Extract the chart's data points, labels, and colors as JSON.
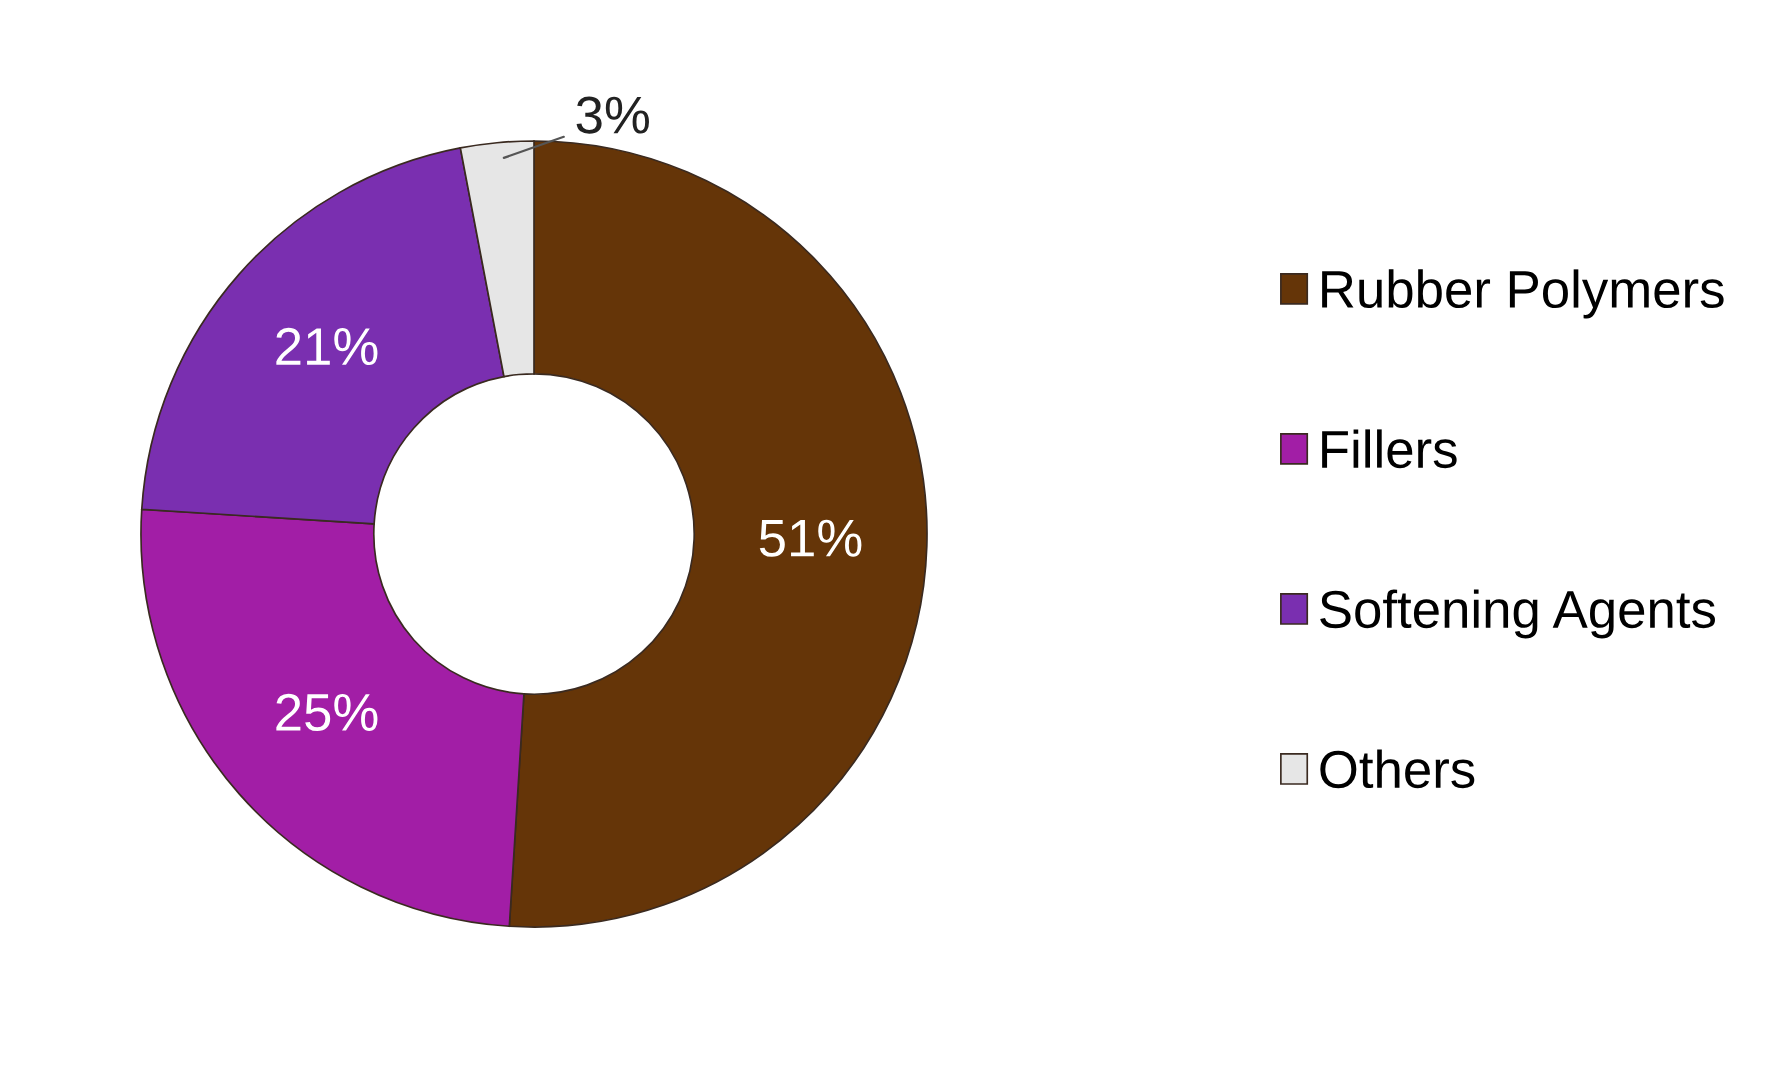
{
  "chart_data": {
    "type": "donut",
    "categories": [
      "Rubber Polymers",
      "Fillers",
      "Softening Agents",
      "Others"
    ],
    "values": [
      51,
      25,
      21,
      3
    ],
    "colors": [
      "#653508",
      "#a21ea6",
      "#7a2fb0",
      "#e6e6e6"
    ],
    "value_labels": [
      "51%",
      "25%",
      "21%",
      "3%"
    ],
    "legend": "right"
  }
}
